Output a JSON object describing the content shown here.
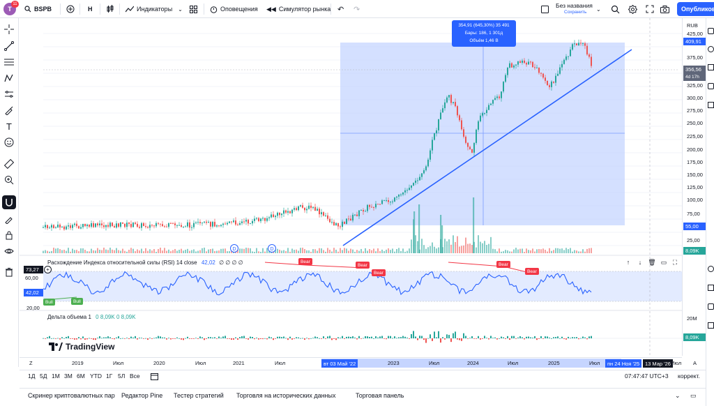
{
  "header": {
    "avatar_letter": "T",
    "notif_count": "11",
    "symbol": "BSPB",
    "interval": "H",
    "indicators_label": "Индикаторы",
    "alerts_label": "Оповещения",
    "replay_label": "Симулятор рынка",
    "layout_name": "Без названия",
    "layout_status": "Сохранить",
    "publish_label": "Опубликовать"
  },
  "tooltip": {
    "line1": "354,91 (645,30%) 35 491",
    "line2": "Бары: 186, 1 301д",
    "line3": "Объём 1,46 B"
  },
  "price_axis": {
    "currency": "RUB",
    "labels": [
      "425,00",
      "375,00",
      "350,00",
      "325,00",
      "300,00",
      "275,00",
      "250,00",
      "225,00",
      "200,00",
      "175,00",
      "150,00",
      "125,00",
      "100,00",
      "75,00",
      "25,00"
    ],
    "tag_high": "409,91",
    "tag_last": "356,56",
    "tag_last_sub": "4d 17h",
    "tag_low": "55,00",
    "tag_vol": "8,09K",
    "rsi_labels": [
      "80,00",
      "60,00",
      "20,00"
    ],
    "rsi_tag1": "73,27",
    "rsi_tag2": "42,02",
    "vol_axis_label": "20M",
    "vol_tag": "8,09K"
  },
  "colors": {
    "accent": "#2962ff",
    "up": "#26a69a",
    "down": "#ef5350",
    "rsi_line": "#2962ff",
    "bear": "#f23645",
    "bull": "#4caf50",
    "range": "#c6d5ff"
  },
  "rsi": {
    "title": "Расхождение Индекса относительной силы (RSI)",
    "param": "14 close",
    "value": "42,02",
    "dots": "∅ ∅ ∅ ∅",
    "bear_label": "Bear",
    "bull_label": "Bull"
  },
  "volume_delta": {
    "title": "Дельта объема",
    "param": "1",
    "value1": "0",
    "value2": "8,09K",
    "value3": "0",
    "value4": "8,09K"
  },
  "time_axis": {
    "labels": [
      "2019",
      "Июл",
      "2020",
      "Июл",
      "2021",
      "Июл",
      "2022",
      "2023",
      "Июл",
      "2024",
      "Июл",
      "2025",
      "Июл"
    ],
    "tag_start": "вт 03 Май '22",
    "tag_end": "пн 24 Ноя '25",
    "tag_cursor": "13 Мар '26",
    "tail": "Июл",
    "auto": "A",
    "zoom": "Z"
  },
  "range_bar": {
    "items": [
      "1Д",
      "5Д",
      "1М",
      "3М",
      "6М",
      "YTD",
      "1Г",
      "5Л",
      "Все"
    ],
    "time": "07:47:47 UTC+3",
    "adjust": "коррект."
  },
  "bottom_tabs": [
    "Скринер криптовалютных пар",
    "Редактор Pine",
    "Тестер стратегий",
    "Торговля на исторических данных",
    "Торговая панель"
  ],
  "logo_text": "TradingView",
  "event_marker": "D"
}
